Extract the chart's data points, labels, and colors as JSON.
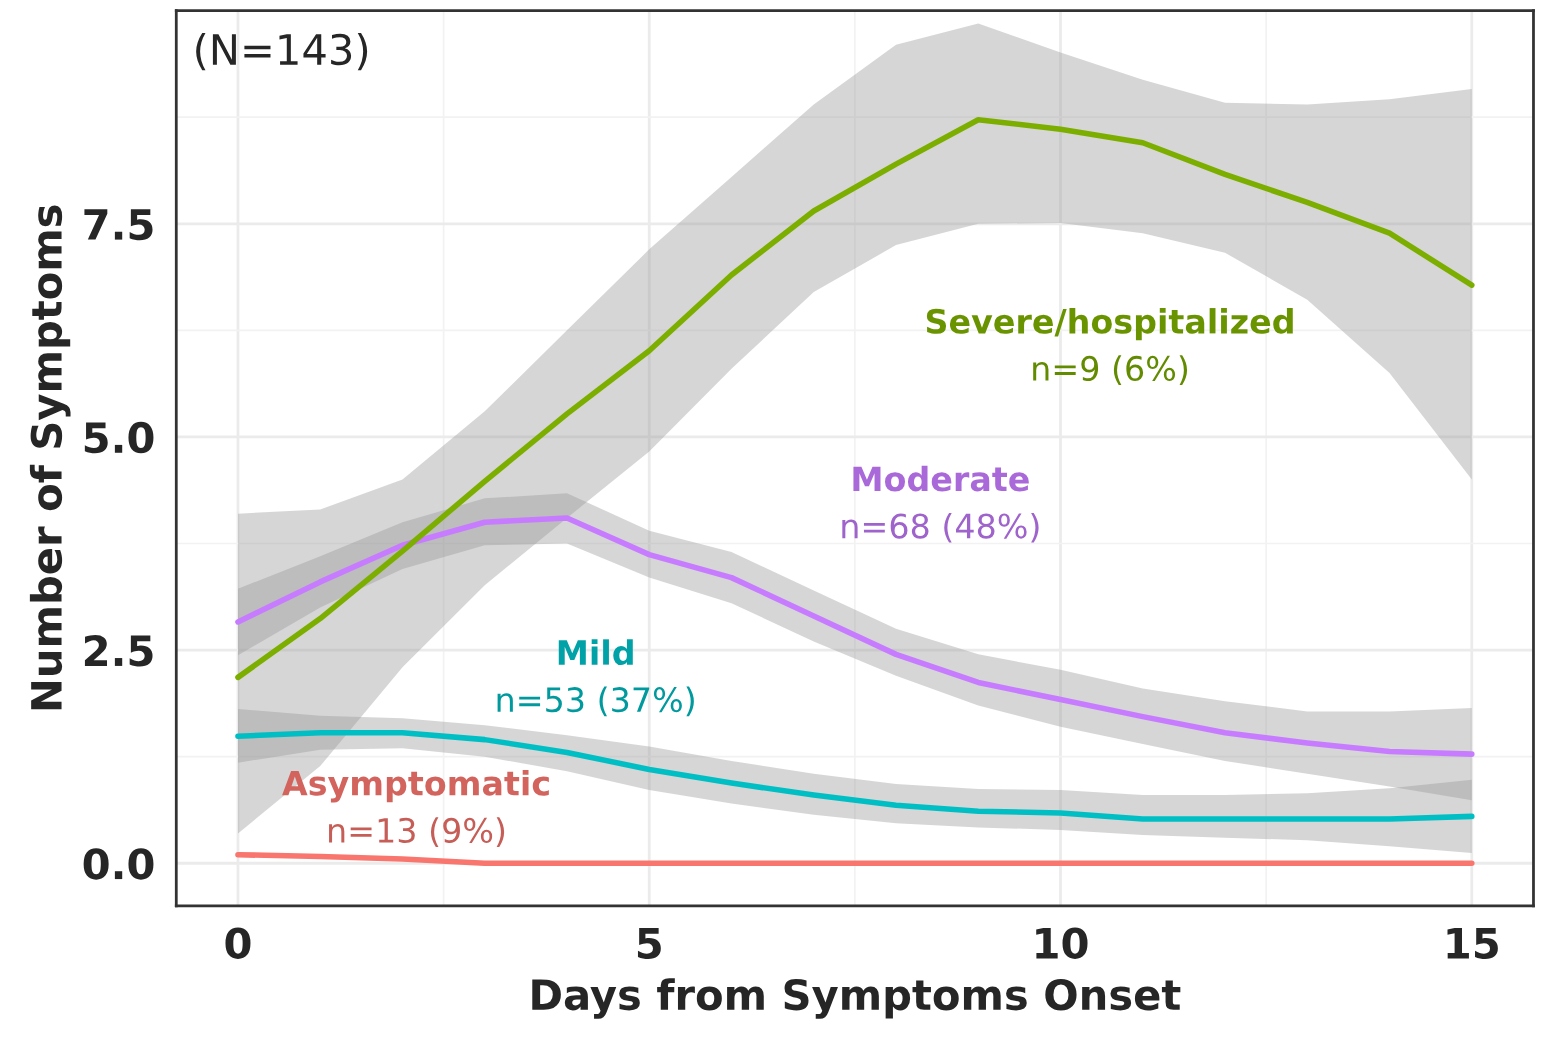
{
  "chart_data": {
    "type": "line",
    "xlabel": "Days from Symptoms Onset",
    "ylabel": "Number of Symptoms",
    "x": [
      0,
      1,
      2,
      3,
      4,
      5,
      6,
      7,
      8,
      9,
      10,
      11,
      12,
      13,
      14,
      15
    ],
    "xlim": [
      -0.75,
      15.75
    ],
    "xticks": [
      0,
      5,
      10,
      15
    ],
    "ylim": [
      -0.5,
      10.0
    ],
    "yticks": [
      {
        "value": 0,
        "label": "0.0"
      },
      {
        "value": 2.5,
        "label": "2.5"
      },
      {
        "value": 5,
        "label": "5.0"
      },
      {
        "value": 7.5,
        "label": "7.5"
      }
    ],
    "grid": true,
    "legend": false,
    "series": [
      {
        "name": "Asymptomatic",
        "color": "#f8766d",
        "values": [
          0.1,
          0.08,
          0.05,
          0,
          0,
          0,
          0,
          0,
          0,
          0,
          0,
          0,
          0,
          0,
          0,
          0
        ]
      },
      {
        "name": "Mild",
        "color": "#00bfc4",
        "values": [
          1.49,
          1.53,
          1.53,
          1.45,
          1.3,
          1.1,
          0.94,
          0.8,
          0.68,
          0.61,
          0.59,
          0.52,
          0.52,
          0.52,
          0.52,
          0.55
        ],
        "lower": [
          1.18,
          1.33,
          1.35,
          1.25,
          1.08,
          0.86,
          0.7,
          0.57,
          0.47,
          0.42,
          0.39,
          0.33,
          0.3,
          0.27,
          0.2,
          0.12
        ],
        "upper": [
          1.81,
          1.73,
          1.7,
          1.62,
          1.5,
          1.37,
          1.2,
          1.05,
          0.93,
          0.87,
          0.86,
          0.8,
          0.8,
          0.82,
          0.88,
          0.98
        ]
      },
      {
        "name": "Moderate",
        "color": "#c77cff",
        "values": [
          2.83,
          3.3,
          3.73,
          4.0,
          4.05,
          3.62,
          3.35,
          2.9,
          2.45,
          2.12,
          1.92,
          1.72,
          1.53,
          1.41,
          1.31,
          1.28
        ],
        "lower": [
          2.44,
          3.0,
          3.45,
          3.73,
          3.75,
          3.35,
          3.05,
          2.6,
          2.2,
          1.85,
          1.6,
          1.4,
          1.2,
          1.05,
          0.9,
          0.74
        ],
        "upper": [
          3.22,
          3.6,
          4.0,
          4.28,
          4.34,
          3.9,
          3.65,
          3.2,
          2.75,
          2.45,
          2.27,
          2.05,
          1.9,
          1.78,
          1.78,
          1.82
        ]
      },
      {
        "name": "Severe/hospitalized",
        "color": "#7cae00",
        "values": [
          2.18,
          2.87,
          3.66,
          4.48,
          5.27,
          6.01,
          6.9,
          7.65,
          8.2,
          8.72,
          8.61,
          8.45,
          8.08,
          7.75,
          7.39,
          6.78
        ],
        "lower": [
          0.35,
          1.14,
          2.3,
          3.26,
          4.05,
          4.83,
          5.8,
          6.7,
          7.25,
          7.5,
          7.51,
          7.39,
          7.16,
          6.61,
          5.75,
          4.5
        ],
        "upper": [
          4.1,
          4.15,
          4.5,
          5.3,
          6.25,
          7.2,
          8.05,
          8.9,
          9.6,
          9.85,
          9.51,
          9.19,
          8.92,
          8.9,
          8.96,
          9.08
        ]
      }
    ],
    "annotations": [
      "n=13 (9%)",
      "n=53 (37%)",
      "n=68 (48%)",
      "n=9 (6%)",
      "(N=143)"
    ]
  }
}
